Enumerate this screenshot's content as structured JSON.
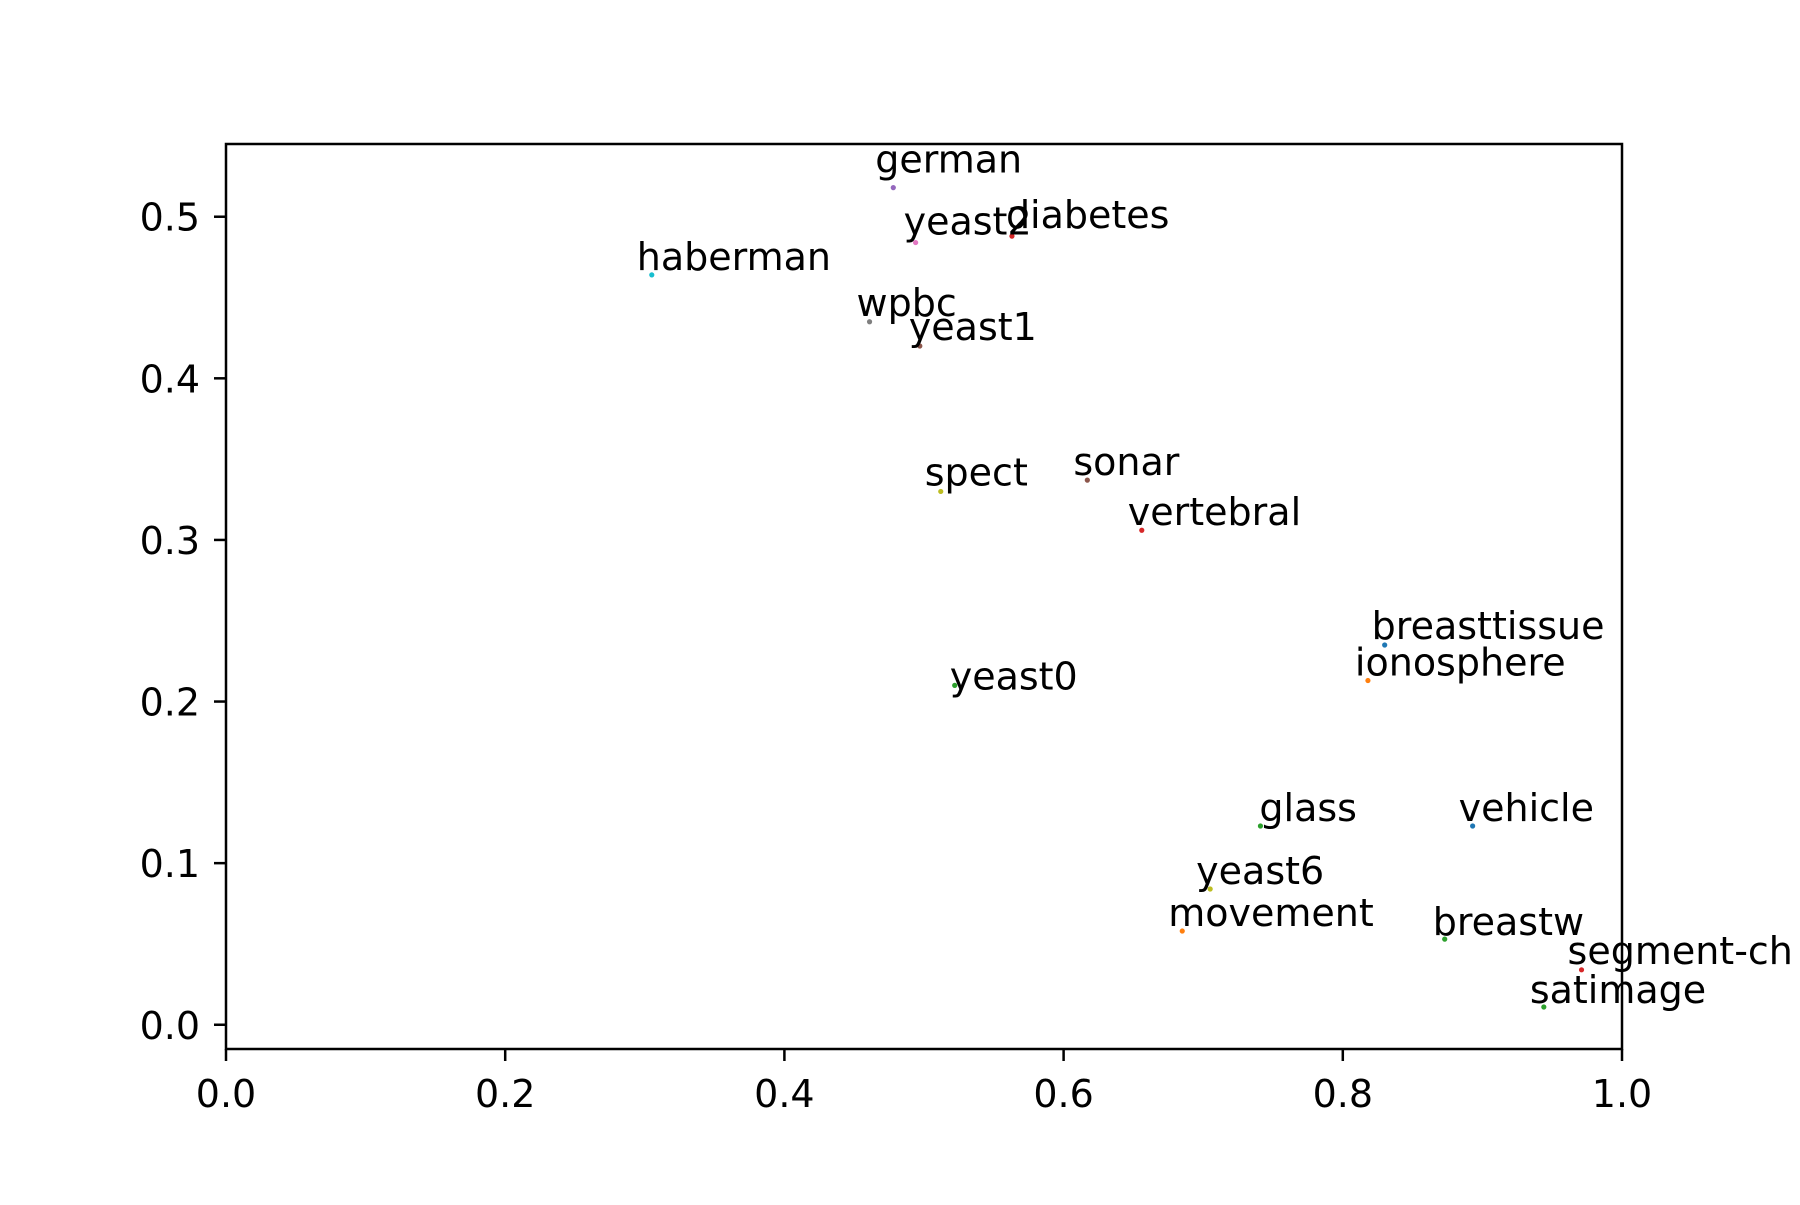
{
  "chart_data": {
    "type": "scatter",
    "title": "",
    "xlabel": "",
    "ylabel": "",
    "xlim": [
      0.0,
      1.0
    ],
    "ylim": [
      -0.015,
      0.545
    ],
    "grid": false,
    "x_ticks": [
      {
        "value": 0.0,
        "label": "0.0"
      },
      {
        "value": 0.2,
        "label": "0.2"
      },
      {
        "value": 0.4,
        "label": "0.4"
      },
      {
        "value": 0.6,
        "label": "0.6"
      },
      {
        "value": 0.8,
        "label": "0.8"
      },
      {
        "value": 1.0,
        "label": "1.0"
      }
    ],
    "y_ticks": [
      {
        "value": 0.0,
        "label": "0.0"
      },
      {
        "value": 0.1,
        "label": "0.1"
      },
      {
        "value": 0.2,
        "label": "0.2"
      },
      {
        "value": 0.3,
        "label": "0.3"
      },
      {
        "value": 0.4,
        "label": "0.4"
      },
      {
        "value": 0.5,
        "label": "0.5"
      }
    ],
    "points": [
      {
        "label": "german",
        "x": 0.478,
        "y": 0.518,
        "color": "#9467bd"
      },
      {
        "label": "yeast2",
        "x": 0.494,
        "y": 0.484,
        "color": "#e377c2"
      },
      {
        "label": "diabetes",
        "x": 0.563,
        "y": 0.488,
        "color": "#d62728"
      },
      {
        "label": "haberman",
        "x": 0.305,
        "y": 0.464,
        "color": "#17becf"
      },
      {
        "label": "wpbc",
        "x": 0.461,
        "y": 0.435,
        "color": "#7f7f7f"
      },
      {
        "label": "yeast1",
        "x": 0.497,
        "y": 0.42,
        "color": "#8c564b"
      },
      {
        "label": "spect",
        "x": 0.512,
        "y": 0.33,
        "color": "#bcbd22"
      },
      {
        "label": "sonar",
        "x": 0.617,
        "y": 0.337,
        "color": "#8c564b"
      },
      {
        "label": "vertebral",
        "x": 0.656,
        "y": 0.306,
        "color": "#d62728"
      },
      {
        "label": "breasttissue",
        "x": 0.83,
        "y": 0.235,
        "color": "#1f77b4"
      },
      {
        "label": "ionosphere",
        "x": 0.818,
        "y": 0.213,
        "color": "#ff7f0e"
      },
      {
        "label": "yeast0",
        "x": 0.522,
        "y": 0.21,
        "color": "#2ca02c"
      },
      {
        "label": "glass",
        "x": 0.741,
        "y": 0.123,
        "color": "#2ca02c"
      },
      {
        "label": "vehicle",
        "x": 0.893,
        "y": 0.123,
        "color": "#1f77b4"
      },
      {
        "label": "yeast6",
        "x": 0.705,
        "y": 0.084,
        "color": "#bcbd22"
      },
      {
        "label": "movement",
        "x": 0.685,
        "y": 0.058,
        "color": "#ff7f0e"
      },
      {
        "label": "breastw",
        "x": 0.873,
        "y": 0.053,
        "color": "#2ca02c"
      },
      {
        "label": "segment-ch",
        "x": 0.971,
        "y": 0.034,
        "color": "#d62728"
      },
      {
        "label": "satimage",
        "x": 0.944,
        "y": 0.011,
        "color": "#2ca02c"
      }
    ]
  }
}
